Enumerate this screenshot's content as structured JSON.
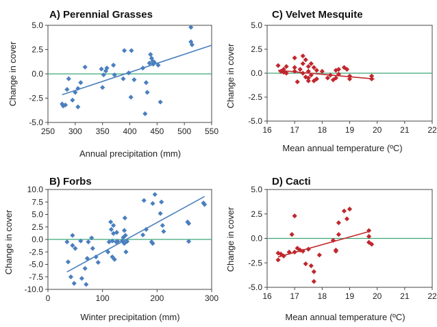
{
  "colors": {
    "blue": "#4a7fbf",
    "red": "#c0272d",
    "zero_line": "#3aa876",
    "frame": "#444444"
  },
  "chart_data": [
    {
      "id": "A",
      "type": "scatter",
      "title": "A) Perennial Grasses",
      "xlabel": "Annual precipitation (mm)",
      "ylabel": "Change in cover",
      "xlim": [
        250,
        550
      ],
      "ylim": [
        -5,
        5
      ],
      "xticks": [
        "250",
        "300",
        "350",
        "400",
        "450",
        "500",
        "550"
      ],
      "yticks": [
        "5.0",
        "2.5",
        "0.0",
        "-2.5",
        "-5.0"
      ],
      "xtick_values": [
        250,
        300,
        350,
        400,
        450,
        500,
        550
      ],
      "ytick_values": [
        5,
        2.5,
        0,
        -2.5,
        -5
      ],
      "color": "#4a7fbf",
      "points": [
        [
          276,
          -3.1
        ],
        [
          278,
          -3.3
        ],
        [
          282,
          -3.2
        ],
        [
          285,
          -1.6
        ],
        [
          288,
          -0.5
        ],
        [
          295,
          -2.7
        ],
        [
          300,
          -1.9
        ],
        [
          305,
          -1.5
        ],
        [
          305,
          -3.4
        ],
        [
          310,
          -0.9
        ],
        [
          318,
          0.7
        ],
        [
          348,
          0.5
        ],
        [
          350,
          -1.4
        ],
        [
          352,
          -0.1
        ],
        [
          356,
          0.3
        ],
        [
          358,
          0.6
        ],
        [
          370,
          0.9
        ],
        [
          372,
          -0.1
        ],
        [
          388,
          -0.5
        ],
        [
          390,
          2.4
        ],
        [
          398,
          0.1
        ],
        [
          402,
          -2.4
        ],
        [
          403,
          2.4
        ],
        [
          408,
          -0.6
        ],
        [
          424,
          0.6
        ],
        [
          428,
          -4.1
        ],
        [
          430,
          -0.9
        ],
        [
          432,
          -1.9
        ],
        [
          436,
          1.1
        ],
        [
          438,
          2.0
        ],
        [
          440,
          1.6
        ],
        [
          442,
          1.3
        ],
        [
          443,
          1.0
        ],
        [
          445,
          1.2
        ],
        [
          452,
          0.9
        ],
        [
          456,
          -2.9
        ],
        [
          512,
          4.8
        ],
        [
          512,
          3.3
        ],
        [
          514,
          3.0
        ]
      ],
      "fit": [
        [
          276,
          -2.15
        ],
        [
          550,
          2.95
        ]
      ]
    },
    {
      "id": "C",
      "type": "scatter",
      "title": "C) Velvet Mesquite",
      "xlabel": "Mean annual temperature (ºC)",
      "ylabel": "Change in cover",
      "xlim": [
        16,
        22
      ],
      "ylim": [
        -5,
        5
      ],
      "xticks": [
        "16",
        "17",
        "18",
        "19",
        "20",
        "21",
        "22"
      ],
      "yticks": [
        "5.0",
        "2.5",
        "0.0",
        "-2.5",
        "-5.0"
      ],
      "xtick_values": [
        16,
        17,
        18,
        19,
        20,
        21,
        22
      ],
      "ytick_values": [
        5,
        2.5,
        0,
        -2.5,
        -5
      ],
      "color": "#c0272d",
      "points": [
        [
          16.4,
          0.8
        ],
        [
          16.5,
          0.2
        ],
        [
          16.6,
          0.4
        ],
        [
          16.6,
          0.1
        ],
        [
          16.7,
          0.7
        ],
        [
          16.7,
          0.0
        ],
        [
          17.0,
          1.6
        ],
        [
          17.0,
          0.6
        ],
        [
          17.0,
          0.2
        ],
        [
          17.1,
          -0.9
        ],
        [
          17.2,
          0.4
        ],
        [
          17.3,
          1.8
        ],
        [
          17.3,
          1.0
        ],
        [
          17.3,
          0.0
        ],
        [
          17.4,
          1.4
        ],
        [
          17.4,
          -0.4
        ],
        [
          17.5,
          0.7
        ],
        [
          17.5,
          0.2
        ],
        [
          17.5,
          -0.5
        ],
        [
          17.5,
          -0.8
        ],
        [
          17.6,
          1.0
        ],
        [
          17.6,
          -0.2
        ],
        [
          17.7,
          0.6
        ],
        [
          17.7,
          -0.8
        ],
        [
          17.8,
          0.3
        ],
        [
          17.8,
          -0.6
        ],
        [
          18.0,
          0.2
        ],
        [
          18.2,
          -0.5
        ],
        [
          18.3,
          -0.2
        ],
        [
          18.4,
          -0.7
        ],
        [
          18.5,
          0.3
        ],
        [
          18.5,
          -0.5
        ],
        [
          18.6,
          0.4
        ],
        [
          18.6,
          -0.1
        ],
        [
          18.8,
          0.6
        ],
        [
          18.9,
          0.4
        ],
        [
          19.0,
          -0.3
        ],
        [
          19.0,
          -0.6
        ],
        [
          19.8,
          -0.3
        ],
        [
          19.8,
          -0.6
        ]
      ],
      "fit": [
        [
          16.4,
          0.3
        ],
        [
          19.9,
          -0.6
        ]
      ]
    },
    {
      "id": "B",
      "type": "scatter",
      "title": "B) Forbs",
      "xlabel": "Winter precipitation (mm)",
      "ylabel": "Change in cover",
      "xlim": [
        0,
        300
      ],
      "ylim": [
        -10,
        10
      ],
      "xticks": [
        "0",
        "100",
        "200",
        "300"
      ],
      "yticks": [
        "10.0",
        "7.5",
        "5.0",
        "2.5",
        "0.0",
        "-2.5",
        "-5.0",
        "-7.5",
        "-10.0"
      ],
      "xtick_values": [
        0,
        100,
        200,
        300
      ],
      "ytick_values": [
        10,
        7.5,
        5,
        2.5,
        0,
        -2.5,
        -5,
        -7.5,
        -10
      ],
      "color": "#4a7fbf",
      "points": [
        [
          35,
          -0.5
        ],
        [
          37,
          -4.5
        ],
        [
          42,
          -7.5
        ],
        [
          45,
          -1.2
        ],
        [
          45,
          0.8
        ],
        [
          48,
          -8.8
        ],
        [
          50,
          -1.8
        ],
        [
          60,
          -0.3
        ],
        [
          62,
          -7.8
        ],
        [
          68,
          -5.8
        ],
        [
          70,
          -9.0
        ],
        [
          72,
          -3.8
        ],
        [
          74,
          -0.5
        ],
        [
          80,
          0.3
        ],
        [
          82,
          -1.8
        ],
        [
          88,
          -3.5
        ],
        [
          92,
          -4.6
        ],
        [
          110,
          -2.5
        ],
        [
          112,
          -0.5
        ],
        [
          115,
          3.5
        ],
        [
          116,
          2.0
        ],
        [
          118,
          -0.3
        ],
        [
          118,
          -3.5
        ],
        [
          120,
          1.2
        ],
        [
          120,
          2.8
        ],
        [
          122,
          -4.0
        ],
        [
          125,
          -0.5
        ],
        [
          126,
          1.4
        ],
        [
          128,
          -0.4
        ],
        [
          136,
          -0.3
        ],
        [
          138,
          0.4
        ],
        [
          140,
          1.8
        ],
        [
          140,
          -0.8
        ],
        [
          141,
          4.3
        ],
        [
          142,
          0.8
        ],
        [
          143,
          -2.5
        ],
        [
          145,
          -0.4
        ],
        [
          174,
          0.9
        ],
        [
          176,
          7.8
        ],
        [
          180,
          2.0
        ],
        [
          190,
          -0.5
        ],
        [
          192,
          7.2
        ],
        [
          192,
          -0.8
        ],
        [
          196,
          9.0
        ],
        [
          206,
          5.2
        ],
        [
          208,
          7.5
        ],
        [
          210,
          2.8
        ],
        [
          212,
          1.6
        ],
        [
          256,
          3.5
        ],
        [
          258,
          -0.4
        ],
        [
          258,
          3.2
        ],
        [
          285,
          7.3
        ],
        [
          287,
          7.0
        ]
      ],
      "fit": [
        [
          35,
          -6.5
        ],
        [
          287,
          8.6
        ]
      ]
    },
    {
      "id": "D",
      "type": "scatter",
      "title": "D) Cacti",
      "xlabel": "Mean annual temperature (ºC)",
      "ylabel": "Change in cover",
      "xlim": [
        16,
        22
      ],
      "ylim": [
        -5,
        5
      ],
      "xticks": [
        "16",
        "17",
        "18",
        "19",
        "20",
        "21",
        "22"
      ],
      "yticks": [
        "5.0",
        "2.5",
        "0.0",
        "-2.5",
        "-5.0"
      ],
      "xtick_values": [
        16,
        17,
        18,
        19,
        20,
        21,
        22
      ],
      "ytick_values": [
        5,
        2.5,
        0,
        -2.5,
        -5
      ],
      "color": "#c0272d",
      "points": [
        [
          16.4,
          -2.2
        ],
        [
          16.4,
          -1.5
        ],
        [
          16.5,
          -1.6
        ],
        [
          16.6,
          -1.8
        ],
        [
          16.8,
          -1.4
        ],
        [
          16.9,
          0.4
        ],
        [
          17.0,
          2.3
        ],
        [
          17.0,
          -1.4
        ],
        [
          17.1,
          -1.0
        ],
        [
          17.2,
          -1.2
        ],
        [
          17.3,
          -1.3
        ],
        [
          17.4,
          -2.6
        ],
        [
          17.5,
          -1.1
        ],
        [
          17.6,
          -2.8
        ],
        [
          17.7,
          -4.4
        ],
        [
          17.7,
          -3.4
        ],
        [
          17.9,
          -1.7
        ],
        [
          18.4,
          -0.2
        ],
        [
          18.5,
          -1.2
        ],
        [
          18.5,
          -1.3
        ],
        [
          18.6,
          1.6
        ],
        [
          18.6,
          0.4
        ],
        [
          18.8,
          2.8
        ],
        [
          18.9,
          2.0
        ],
        [
          19.0,
          3.0
        ],
        [
          19.7,
          0.8
        ],
        [
          19.7,
          0.2
        ],
        [
          19.7,
          -0.4
        ],
        [
          19.8,
          -0.6
        ]
      ],
      "fit": [
        [
          16.4,
          -1.9
        ],
        [
          19.7,
          0.7
        ]
      ]
    }
  ]
}
